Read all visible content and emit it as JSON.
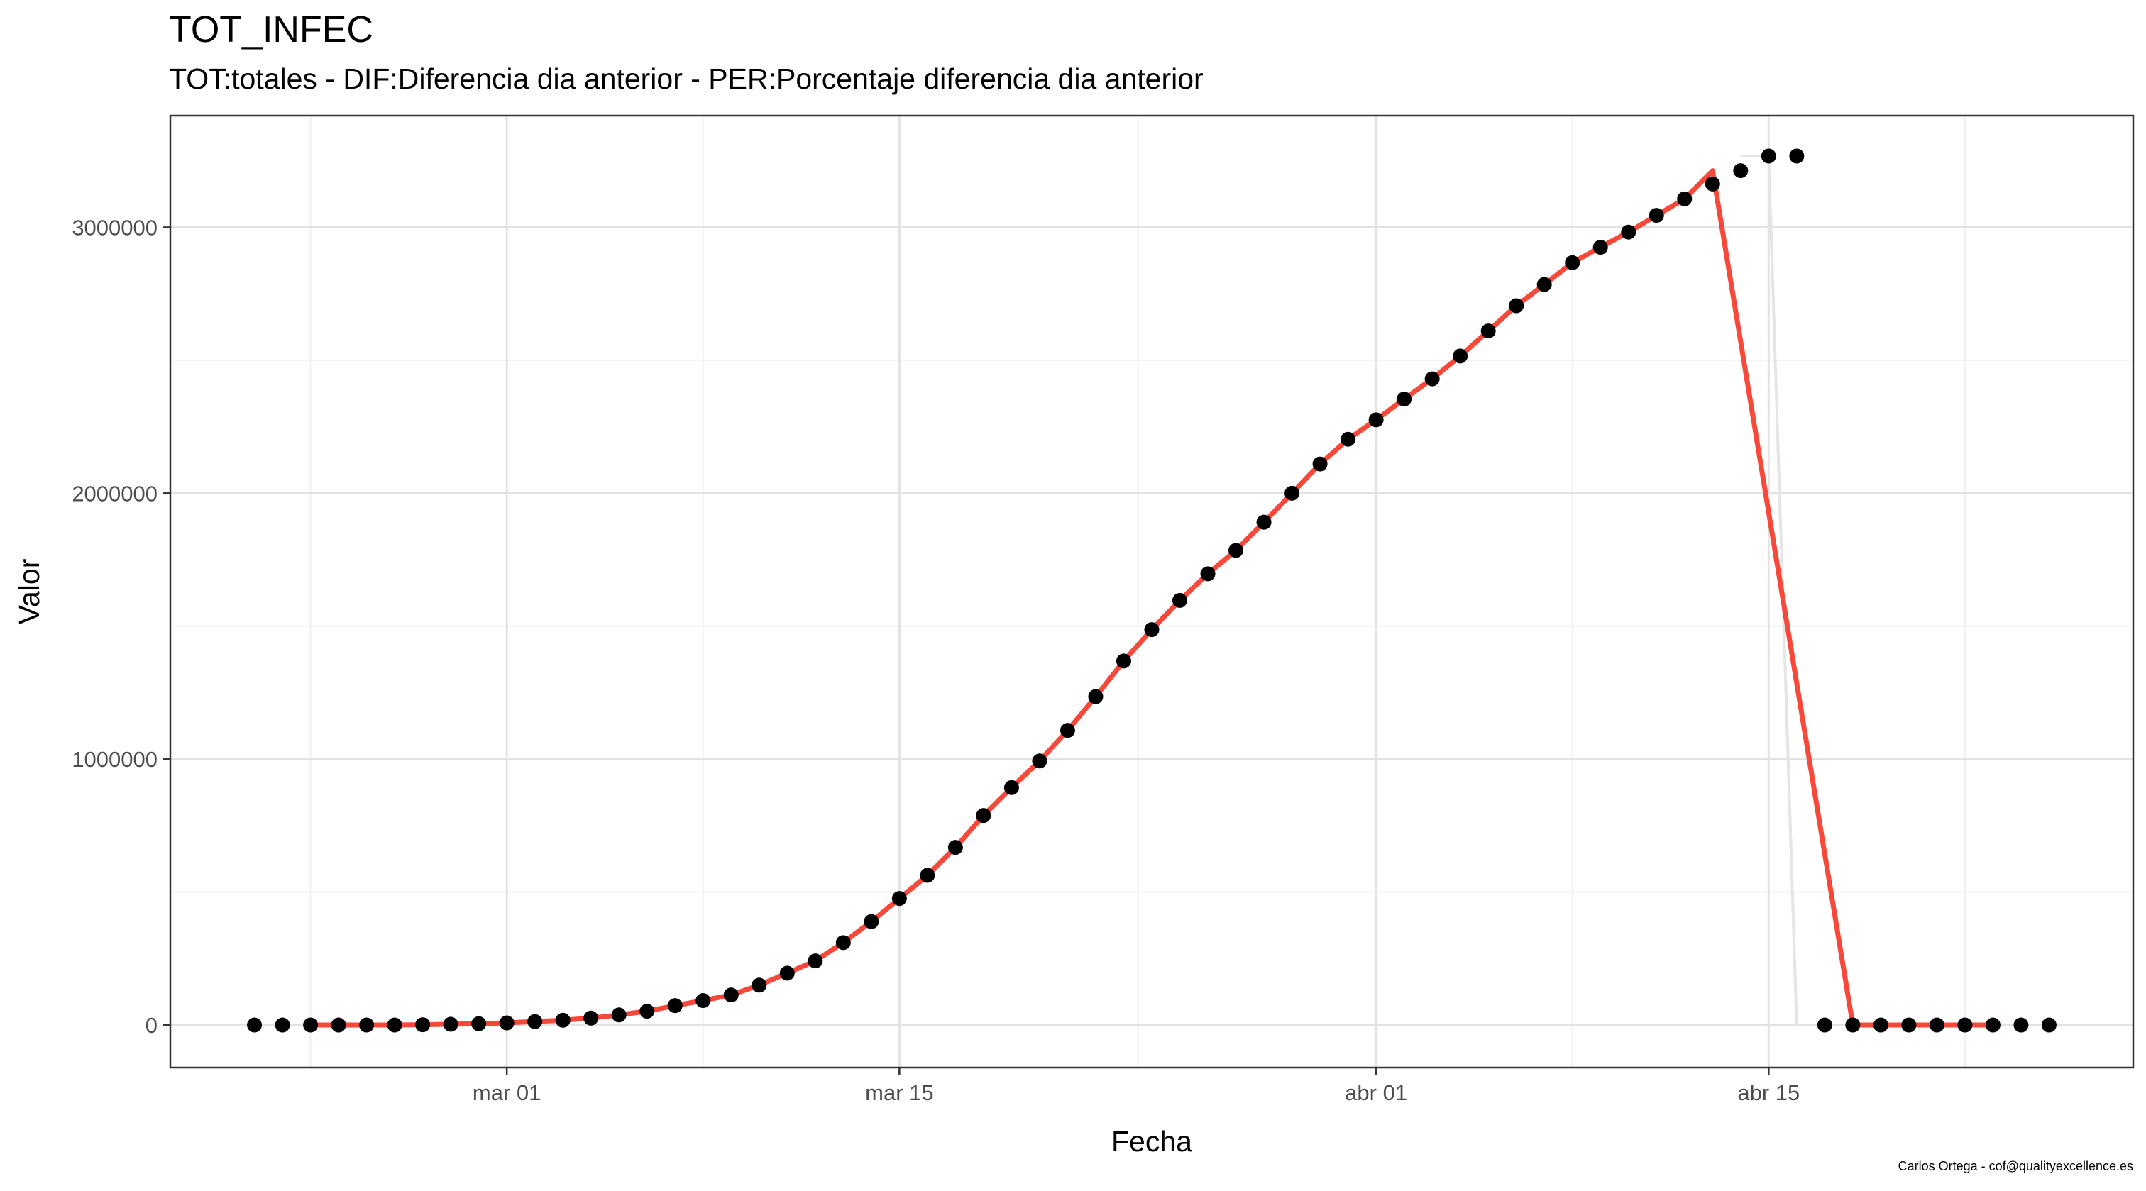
{
  "title": "TOT_INFEC",
  "subtitle": "TOT:totales - DIF:Diferencia dia anterior - PER:Porcentaje diferencia dia anterior",
  "credit": "Carlos Ortega - cof@qualityexcellence.es",
  "colors": {
    "points": "#000000",
    "smooth_line": "#F8483A",
    "raw_line": "#E5E5E5",
    "grid_major": "#E2E2E2",
    "grid_minor": "#F0F0F0",
    "panel_border": "#333333"
  },
  "chart_data": {
    "type": "scatter",
    "xlabel": "Fecha",
    "ylabel": "Valor",
    "grid": true,
    "x_ticks": [
      {
        "date": "2020-03-01",
        "label": "mar 01"
      },
      {
        "date": "2020-03-15",
        "label": "mar 15"
      },
      {
        "date": "2020-04-01",
        "label": "abr 01"
      },
      {
        "date": "2020-04-15",
        "label": "abr 15"
      }
    ],
    "y_ticks": [
      0,
      1000000,
      2000000,
      3000000
    ],
    "y_tick_labels": [
      "0",
      "1000000",
      "2000000",
      "3000000"
    ],
    "xlim": [
      "2020-02-18",
      "2020-04-28"
    ],
    "ylim": [
      -160000,
      3420000
    ],
    "series": [
      {
        "kind": "points",
        "x": [
          "2020-02-21",
          "2020-02-22",
          "2020-02-23",
          "2020-02-24",
          "2020-02-25",
          "2020-02-26",
          "2020-02-27",
          "2020-02-28",
          "2020-02-29",
          "2020-03-01",
          "2020-03-02",
          "2020-03-03",
          "2020-03-04",
          "2020-03-05",
          "2020-03-06",
          "2020-03-07",
          "2020-03-08",
          "2020-03-09",
          "2020-03-10",
          "2020-03-11",
          "2020-03-12",
          "2020-03-13",
          "2020-03-14",
          "2020-03-15",
          "2020-03-16",
          "2020-03-17",
          "2020-03-18",
          "2020-03-19",
          "2020-03-20",
          "2020-03-21",
          "2020-03-22",
          "2020-03-23",
          "2020-03-24",
          "2020-03-25",
          "2020-03-26",
          "2020-03-27",
          "2020-03-28",
          "2020-03-29",
          "2020-03-30",
          "2020-03-31",
          "2020-04-01",
          "2020-04-02",
          "2020-04-03",
          "2020-04-04",
          "2020-04-05",
          "2020-04-06",
          "2020-04-07",
          "2020-04-08",
          "2020-04-09",
          "2020-04-10",
          "2020-04-11",
          "2020-04-12",
          "2020-04-13",
          "2020-04-14",
          "2020-04-15",
          "2020-04-16",
          "2020-04-17",
          "2020-04-18",
          "2020-04-19",
          "2020-04-20",
          "2020-04-21",
          "2020-04-22",
          "2020-04-23",
          "2020-04-24",
          "2020-04-25"
        ],
        "y": [
          0,
          0,
          0,
          0,
          0,
          0,
          1000,
          3000,
          5000,
          8000,
          13000,
          18000,
          26000,
          38000,
          52000,
          73000,
          92000,
          113000,
          150000,
          195000,
          241000,
          310000,
          389000,
          476000,
          563000,
          668000,
          788000,
          893000,
          993000,
          1108000,
          1235000,
          1369000,
          1487000,
          1597000,
          1697000,
          1785000,
          1891000,
          2000000,
          2110000,
          2203000,
          2276000,
          2354000,
          2430000,
          2516000,
          2610000,
          2705000,
          2785000,
          2867000,
          2925000,
          2982000,
          3045000,
          3107000,
          3163000,
          3213000,
          3268000,
          3268000,
          0,
          0,
          0,
          0,
          0,
          0,
          0,
          0,
          0
        ]
      },
      {
        "kind": "raw_line",
        "x": [
          "2020-04-14",
          "2020-04-15",
          "2020-04-16"
        ],
        "y": [
          3268000,
          3268000,
          0
        ]
      },
      {
        "kind": "smooth_line",
        "x": [
          "2020-02-23",
          "2020-02-24",
          "2020-02-25",
          "2020-02-26",
          "2020-02-27",
          "2020-02-28",
          "2020-02-29",
          "2020-03-01",
          "2020-03-02",
          "2020-03-03",
          "2020-03-04",
          "2020-03-05",
          "2020-03-06",
          "2020-03-07",
          "2020-03-08",
          "2020-03-09",
          "2020-03-10",
          "2020-03-11",
          "2020-03-12",
          "2020-03-13",
          "2020-03-14",
          "2020-03-15",
          "2020-03-16",
          "2020-03-17",
          "2020-03-18",
          "2020-03-19",
          "2020-03-20",
          "2020-03-21",
          "2020-03-22",
          "2020-03-23",
          "2020-03-24",
          "2020-03-25",
          "2020-03-26",
          "2020-03-27",
          "2020-03-28",
          "2020-03-29",
          "2020-03-30",
          "2020-03-31",
          "2020-04-01",
          "2020-04-02",
          "2020-04-03",
          "2020-04-04",
          "2020-04-05",
          "2020-04-06",
          "2020-04-07",
          "2020-04-08",
          "2020-04-09",
          "2020-04-10",
          "2020-04-11",
          "2020-04-12",
          "2020-04-13",
          "2020-04-18",
          "2020-04-19",
          "2020-04-20",
          "2020-04-21",
          "2020-04-22",
          "2020-04-23"
        ],
        "y": [
          0,
          0,
          0,
          0,
          1000,
          3000,
          5000,
          8000,
          13000,
          18000,
          26000,
          38000,
          52000,
          73000,
          92000,
          113000,
          150000,
          195000,
          241000,
          310000,
          389000,
          476000,
          563000,
          668000,
          788000,
          893000,
          993000,
          1108000,
          1235000,
          1369000,
          1487000,
          1597000,
          1697000,
          1785000,
          1891000,
          2000000,
          2110000,
          2203000,
          2276000,
          2354000,
          2430000,
          2516000,
          2610000,
          2705000,
          2785000,
          2867000,
          2925000,
          2982000,
          3045000,
          3107000,
          3213000,
          0,
          0,
          0,
          0,
          0,
          0
        ]
      }
    ]
  }
}
